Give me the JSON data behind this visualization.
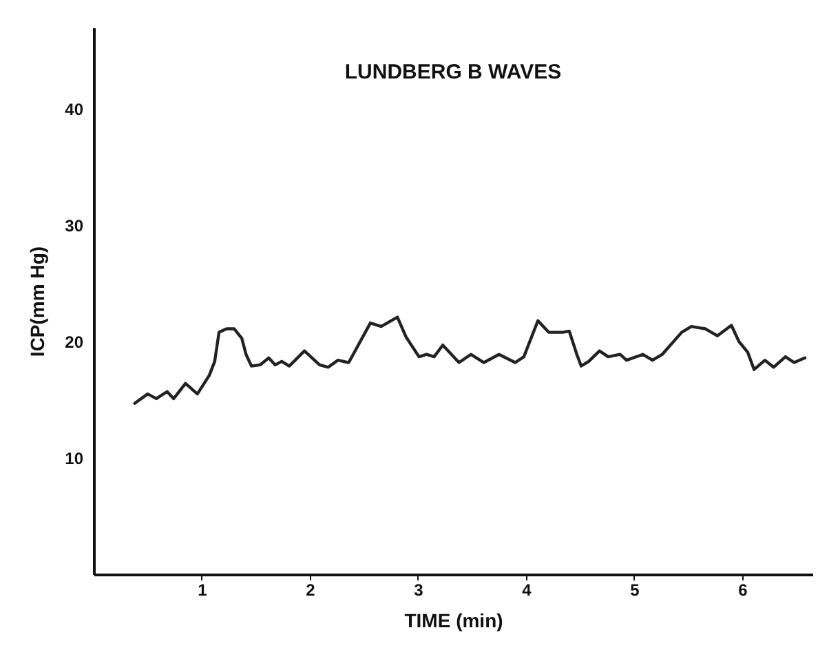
{
  "chart_data": {
    "type": "line",
    "title": "LUNDBERG B WAVES",
    "xlabel": "TIME (min)",
    "ylabel": "ICP(mm Hg)",
    "xlim": [
      0,
      6.65
    ],
    "ylim": [
      0,
      47
    ],
    "xticks": [
      1,
      2,
      3,
      4,
      5,
      6
    ],
    "yticks": [
      10,
      20,
      30,
      40
    ],
    "grid": false,
    "marker": "none",
    "line_style": "solid",
    "series": [
      {
        "color": "#222222",
        "x": [
          0.38,
          0.5,
          0.58,
          0.68,
          0.74,
          0.85,
          0.96,
          1.07,
          1.12,
          1.16,
          1.23,
          1.3,
          1.37,
          1.41,
          1.46,
          1.54,
          1.62,
          1.68,
          1.74,
          1.81,
          1.95,
          2.09,
          2.17,
          2.26,
          2.36,
          2.56,
          2.66,
          2.81,
          2.89,
          3.01,
          3.08,
          3.15,
          3.23,
          3.38,
          3.49,
          3.61,
          3.75,
          3.9,
          3.98,
          4.11,
          4.21,
          4.34,
          4.4,
          4.47,
          4.51,
          4.58,
          4.68,
          4.76,
          4.87,
          4.93,
          5.08,
          5.17,
          5.26,
          5.44,
          5.53,
          5.66,
          5.77,
          5.9,
          5.97,
          6.05,
          6.11,
          6.21,
          6.29,
          6.4,
          6.48,
          6.58
        ],
        "values": [
          14.7,
          15.5,
          15.1,
          15.7,
          15.1,
          16.4,
          15.5,
          17.1,
          18.3,
          20.8,
          21.1,
          21.1,
          20.3,
          18.9,
          17.9,
          18.0,
          18.6,
          18.0,
          18.3,
          17.9,
          19.2,
          18.0,
          17.8,
          18.4,
          18.2,
          21.6,
          21.3,
          22.1,
          20.4,
          18.7,
          18.9,
          18.7,
          19.7,
          18.2,
          18.9,
          18.2,
          18.9,
          18.2,
          18.7,
          21.8,
          20.8,
          20.8,
          20.9,
          18.9,
          17.9,
          18.3,
          19.2,
          18.7,
          18.9,
          18.4,
          18.9,
          18.4,
          18.9,
          20.8,
          21.3,
          21.1,
          20.5,
          21.4,
          20.0,
          19.1,
          17.6,
          18.4,
          17.8,
          18.7,
          18.2,
          18.6
        ]
      }
    ]
  }
}
